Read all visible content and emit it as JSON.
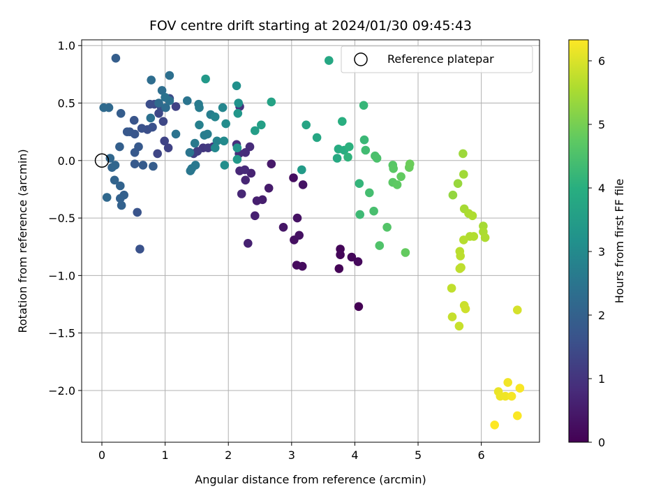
{
  "chart_data": {
    "type": "scatter",
    "title": "FOV centre drift starting at 2024/01/30 09:45:43",
    "xlabel": "Angular distance from reference (arcmin)",
    "ylabel": "Rotation from reference (arcmin)",
    "xlim": [
      -0.32,
      6.92
    ],
    "ylim": [
      -2.45,
      1.05
    ],
    "x_ticks": [
      0,
      1,
      2,
      3,
      4,
      5,
      6
    ],
    "y_ticks": [
      1.0,
      0.5,
      0.0,
      -0.5,
      -1.0,
      -1.5,
      -2.0
    ],
    "x_tick_labels": [
      "0",
      "1",
      "2",
      "3",
      "4",
      "5",
      "6"
    ],
    "y_tick_labels": [
      "1.0",
      "0.5",
      "0.0",
      "−0.5",
      "−1.0",
      "−1.5",
      "−2.0"
    ],
    "grid": true,
    "legend": {
      "placement": "top-right",
      "entries": [
        "Reference platepar"
      ]
    },
    "reference_point": {
      "name": "Reference platepar",
      "x": 0.0,
      "y": 0.0
    },
    "colorbar": {
      "label": "Hours from first FF file",
      "range": [
        0,
        6.33
      ],
      "ticks": [
        0,
        1,
        2,
        3,
        4,
        5,
        6
      ],
      "tick_labels": [
        "0",
        "1",
        "2",
        "3",
        "4",
        "5",
        "6"
      ],
      "colormap": "viridis"
    },
    "points": [
      [
        4.06,
        -1.27,
        0.0
      ],
      [
        3.75,
        -0.94,
        0.05
      ],
      [
        3.77,
        -0.77,
        0.08
      ],
      [
        3.77,
        -0.82,
        0.1
      ],
      [
        3.95,
        -0.84,
        0.13
      ],
      [
        4.05,
        -0.88,
        0.15
      ],
      [
        3.08,
        -0.91,
        0.2
      ],
      [
        3.17,
        -0.92,
        0.22
      ],
      [
        3.03,
        -0.15,
        0.25
      ],
      [
        3.04,
        -0.69,
        0.28
      ],
      [
        3.12,
        -0.65,
        0.3
      ],
      [
        3.09,
        -0.5,
        0.33
      ],
      [
        3.18,
        -0.21,
        0.35
      ],
      [
        2.87,
        -0.58,
        0.4
      ],
      [
        2.68,
        -0.03,
        0.45
      ],
      [
        2.64,
        -0.24,
        0.5
      ],
      [
        2.54,
        -0.34,
        0.55
      ],
      [
        2.45,
        -0.35,
        0.58
      ],
      [
        2.42,
        -0.48,
        0.6
      ],
      [
        2.31,
        -0.72,
        0.62
      ],
      [
        2.36,
        -0.11,
        0.65
      ],
      [
        2.27,
        -0.17,
        0.7
      ],
      [
        2.21,
        -0.29,
        0.72
      ],
      [
        2.18,
        -0.09,
        0.75
      ],
      [
        2.26,
        -0.08,
        0.78
      ],
      [
        2.34,
        0.12,
        0.82
      ],
      [
        2.27,
        0.07,
        0.85
      ],
      [
        2.17,
        0.06,
        0.88
      ],
      [
        2.13,
        0.14,
        0.9
      ],
      [
        2.18,
        0.47,
        0.95
      ],
      [
        1.76,
        0.12,
        1.0
      ],
      [
        1.6,
        0.11,
        1.05
      ],
      [
        1.68,
        0.11,
        1.1
      ],
      [
        1.51,
        0.08,
        1.15
      ],
      [
        1.45,
        0.06,
        1.2
      ],
      [
        1.17,
        0.47,
        1.25
      ],
      [
        1.05,
        0.11,
        1.28
      ],
      [
        0.99,
        0.17,
        1.3
      ],
      [
        0.88,
        0.06,
        1.35
      ],
      [
        0.97,
        0.34,
        1.38
      ],
      [
        0.9,
        0.41,
        1.4
      ],
      [
        1.07,
        0.54,
        1.45
      ],
      [
        0.83,
        0.49,
        1.48
      ],
      [
        0.94,
        0.46,
        1.5
      ],
      [
        0.76,
        0.49,
        1.52
      ],
      [
        0.72,
        0.27,
        1.55
      ],
      [
        0.8,
        0.29,
        1.58
      ],
      [
        0.63,
        0.28,
        1.6
      ],
      [
        0.6,
        -0.77,
        1.62
      ],
      [
        0.56,
        -0.45,
        1.65
      ],
      [
        0.51,
        0.35,
        1.68
      ],
      [
        0.52,
        0.23,
        1.7
      ],
      [
        0.44,
        0.25,
        1.72
      ],
      [
        0.4,
        0.25,
        1.75
      ],
      [
        0.58,
        0.12,
        1.78
      ],
      [
        0.52,
        0.07,
        1.8
      ],
      [
        0.52,
        -0.03,
        1.82
      ],
      [
        0.65,
        -0.04,
        1.85
      ],
      [
        0.81,
        -0.05,
        1.88
      ],
      [
        0.3,
        0.41,
        1.9
      ],
      [
        0.22,
        0.89,
        1.92
      ],
      [
        0.28,
        0.12,
        1.95
      ],
      [
        0.35,
        -0.3,
        1.97
      ],
      [
        0.29,
        -0.33,
        2.0
      ],
      [
        0.31,
        -0.39,
        2.03
      ],
      [
        0.29,
        -0.22,
        2.05
      ],
      [
        0.2,
        -0.17,
        2.08
      ],
      [
        0.16,
        -0.06,
        2.1
      ],
      [
        0.21,
        -0.04,
        2.12
      ],
      [
        0.13,
        0.02,
        2.15
      ],
      [
        0.08,
        -0.32,
        2.18
      ],
      [
        0.11,
        0.46,
        2.2
      ],
      [
        0.03,
        0.46,
        2.22
      ],
      [
        0.9,
        0.5,
        2.25
      ],
      [
        1.01,
        0.46,
        2.28
      ],
      [
        0.78,
        0.7,
        2.3
      ],
      [
        0.95,
        0.61,
        2.32
      ],
      [
        1.07,
        0.74,
        2.35
      ],
      [
        0.77,
        0.37,
        2.38
      ],
      [
        1.07,
        0.52,
        2.4
      ],
      [
        1.0,
        0.55,
        2.42
      ],
      [
        1.17,
        0.23,
        2.45
      ],
      [
        1.35,
        0.52,
        2.48
      ],
      [
        1.39,
        0.07,
        2.5
      ],
      [
        1.4,
        -0.09,
        2.52
      ],
      [
        1.42,
        -0.07,
        2.55
      ],
      [
        1.48,
        -0.04,
        2.58
      ],
      [
        1.47,
        0.15,
        2.6
      ],
      [
        1.53,
        0.49,
        2.62
      ],
      [
        1.54,
        0.46,
        2.65
      ],
      [
        1.62,
        0.22,
        2.68
      ],
      [
        1.67,
        0.23,
        2.7
      ],
      [
        1.72,
        0.4,
        2.72
      ],
      [
        1.54,
        0.31,
        2.75
      ],
      [
        1.82,
        0.17,
        2.8
      ],
      [
        1.79,
        0.38,
        2.85
      ],
      [
        1.91,
        0.46,
        2.9
      ],
      [
        1.79,
        0.11,
        2.95
      ],
      [
        1.93,
        0.17,
        3.0
      ],
      [
        1.96,
        0.32,
        3.05
      ],
      [
        1.94,
        -0.04,
        3.1
      ],
      [
        2.13,
        0.65,
        3.15
      ],
      [
        2.16,
        0.5,
        3.2
      ],
      [
        2.14,
        0.11,
        3.25
      ],
      [
        2.15,
        0.41,
        3.3
      ],
      [
        2.14,
        0.01,
        3.35
      ],
      [
        1.64,
        0.71,
        3.4
      ],
      [
        3.16,
        -0.08,
        3.45
      ],
      [
        2.42,
        0.26,
        3.5
      ],
      [
        2.52,
        0.31,
        3.55
      ],
      [
        2.68,
        0.51,
        3.65
      ],
      [
        3.23,
        0.31,
        3.7
      ],
      [
        3.4,
        0.2,
        3.75
      ],
      [
        3.59,
        0.87,
        3.8
      ],
      [
        3.72,
        0.02,
        3.85
      ],
      [
        3.74,
        0.1,
        3.9
      ],
      [
        3.83,
        0.09,
        3.95
      ],
      [
        3.8,
        0.34,
        4.0
      ],
      [
        3.91,
        0.12,
        4.05
      ],
      [
        3.89,
        0.03,
        4.1
      ],
      [
        4.07,
        -0.2,
        4.15
      ],
      [
        4.14,
        0.48,
        4.2
      ],
      [
        4.15,
        0.18,
        4.25
      ],
      [
        4.08,
        -0.47,
        4.3
      ],
      [
        4.17,
        0.09,
        4.35
      ],
      [
        4.23,
        -0.28,
        4.4
      ],
      [
        4.3,
        -0.44,
        4.45
      ],
      [
        4.32,
        0.04,
        4.48
      ],
      [
        4.35,
        0.02,
        4.5
      ],
      [
        4.39,
        -0.74,
        4.55
      ],
      [
        4.51,
        -0.58,
        4.6
      ],
      [
        4.6,
        -0.04,
        4.65
      ],
      [
        4.61,
        -0.07,
        4.68
      ],
      [
        4.6,
        -0.19,
        4.7
      ],
      [
        4.67,
        -0.21,
        4.75
      ],
      [
        4.73,
        -0.14,
        4.78
      ],
      [
        4.8,
        -0.8,
        4.8
      ],
      [
        4.86,
        -0.06,
        4.85
      ],
      [
        4.87,
        -0.03,
        4.88
      ],
      [
        5.55,
        -0.3,
        5.3
      ],
      [
        5.63,
        -0.2,
        5.35
      ],
      [
        5.71,
        0.06,
        5.4
      ],
      [
        5.72,
        -0.12,
        5.45
      ],
      [
        5.73,
        -0.42,
        5.5
      ],
      [
        5.8,
        -0.46,
        5.55
      ],
      [
        5.86,
        -0.48,
        5.58
      ],
      [
        5.82,
        -0.66,
        5.6
      ],
      [
        5.88,
        -0.66,
        5.62
      ],
      [
        5.72,
        -0.69,
        5.65
      ],
      [
        5.66,
        -0.79,
        5.68
      ],
      [
        5.67,
        -0.83,
        5.7
      ],
      [
        5.68,
        -0.93,
        5.72
      ],
      [
        5.66,
        -0.94,
        5.74
      ],
      [
        6.03,
        -0.57,
        5.5
      ],
      [
        6.03,
        -0.62,
        5.55
      ],
      [
        6.06,
        -0.67,
        5.58
      ],
      [
        5.53,
        -1.11,
        5.75
      ],
      [
        5.54,
        -1.36,
        5.8
      ],
      [
        5.65,
        -1.44,
        5.82
      ],
      [
        5.73,
        -1.26,
        5.85
      ],
      [
        5.75,
        -1.29,
        5.88
      ],
      [
        6.57,
        -1.3,
        5.95
      ],
      [
        6.27,
        -2.01,
        6.15
      ],
      [
        6.3,
        -2.05,
        6.18
      ],
      [
        6.38,
        -2.05,
        6.2
      ],
      [
        6.42,
        -1.93,
        6.22
      ],
      [
        6.48,
        -2.05,
        6.25
      ],
      [
        6.61,
        -1.98,
        6.28
      ],
      [
        6.57,
        -2.22,
        6.3
      ],
      [
        6.21,
        -2.3,
        6.33
      ]
    ]
  }
}
